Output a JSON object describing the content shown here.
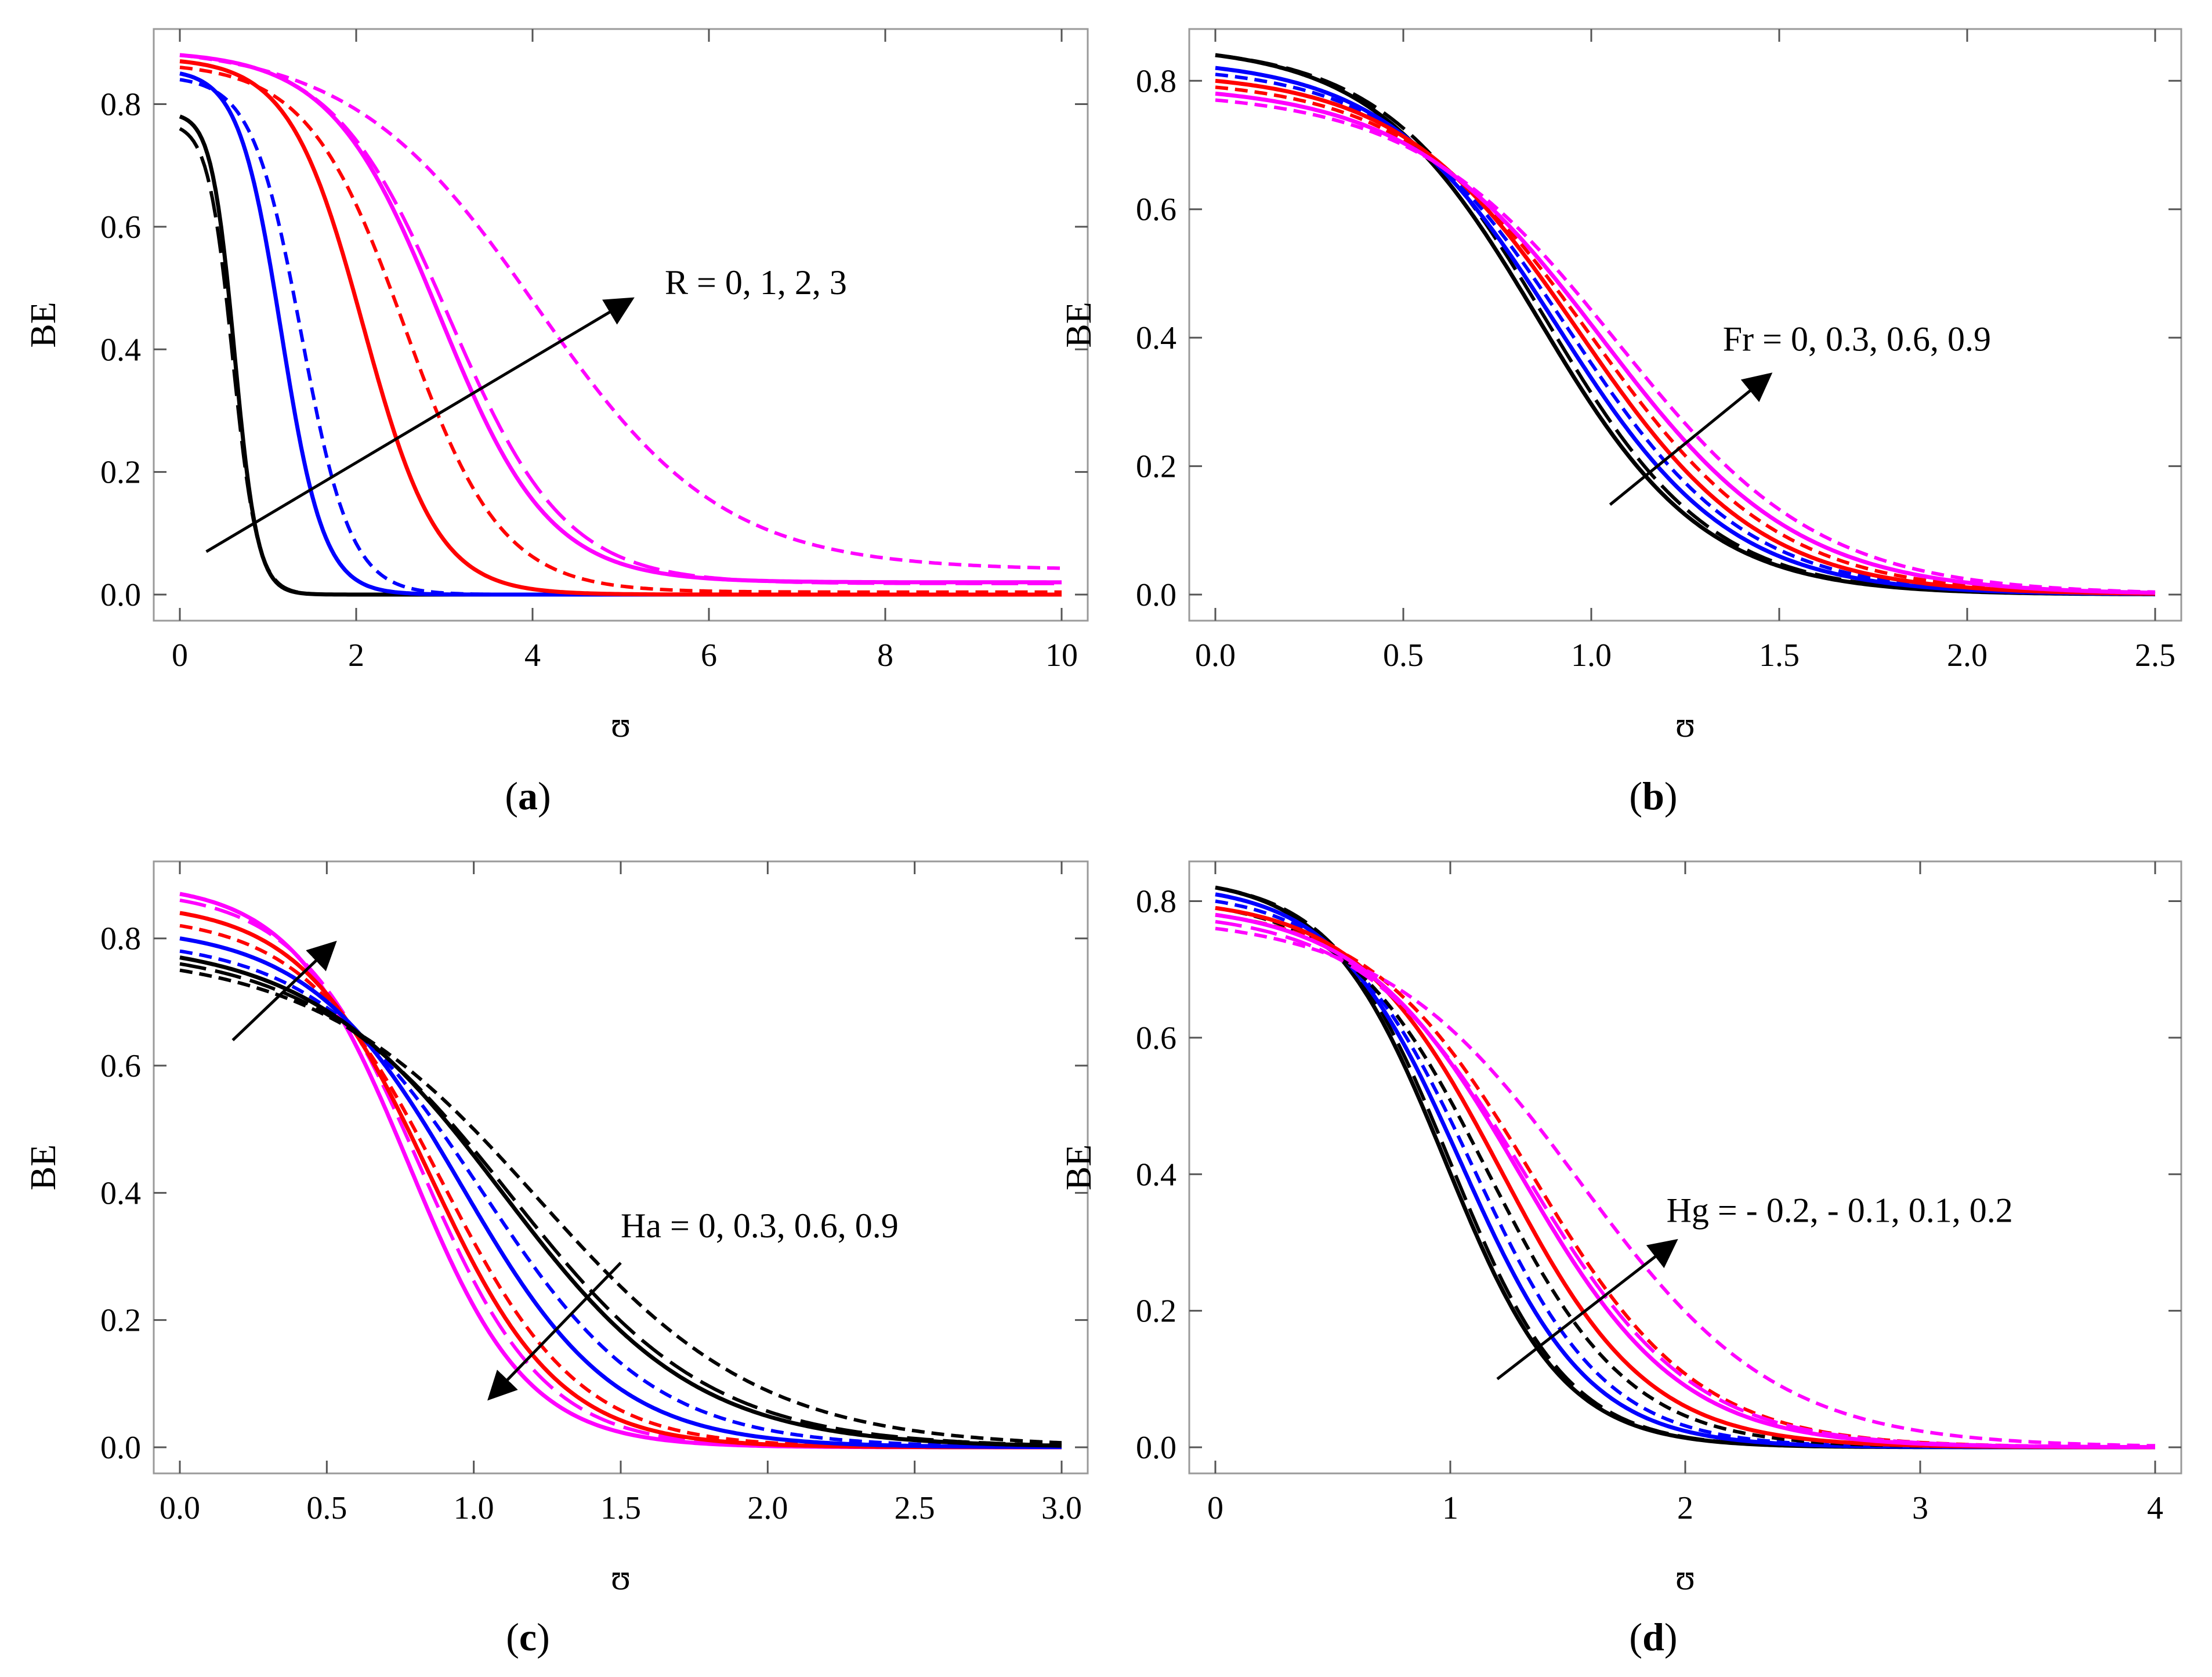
{
  "figure": {
    "panels": [
      "a",
      "b",
      "c",
      "d"
    ]
  },
  "colors": {
    "black": "#000000",
    "blue": "#0000ff",
    "red": "#ff0000",
    "magenta": "#ff00ff",
    "frame": "#9a9a9a"
  },
  "chart_data": [
    {
      "id": "a",
      "type": "line",
      "caption_letter": "a",
      "xlabel": "ʊ",
      "ylabel": "BE",
      "xlim": [
        0,
        10
      ],
      "ylim": [
        0,
        0.88
      ],
      "xticks": [
        0,
        2,
        4,
        6,
        8,
        10
      ],
      "xtick_labels": [
        "0",
        "2",
        "4",
        "6",
        "8",
        "10"
      ],
      "yticks": [
        0,
        0.2,
        0.4,
        0.6,
        0.8
      ],
      "ytick_labels": [
        "0.0",
        "0.2",
        "0.4",
        "0.6",
        "0.8"
      ],
      "annotation": "R = 0, 1, 2, 3",
      "arrows": [
        {
          "from": [
            0.3,
            0.07
          ],
          "to": [
            5.1,
            0.48
          ]
        }
      ],
      "annotation_pos": [
        5.5,
        0.49
      ],
      "series": [
        {
          "name": "R=0 solid",
          "color": "black",
          "dash": "solid",
          "params": [
            0.78,
            0.62,
            0.13,
            0.0
          ]
        },
        {
          "name": "R=0 dashed",
          "color": "black",
          "dash": "long",
          "params": [
            0.76,
            0.6,
            0.14,
            0.0
          ]
        },
        {
          "name": "R=1 solid",
          "color": "blue",
          "dash": "solid",
          "params": [
            0.85,
            1.15,
            0.24,
            0.0
          ]
        },
        {
          "name": "R=1 dashed",
          "color": "blue",
          "dash": "short",
          "params": [
            0.84,
            1.38,
            0.28,
            0.0
          ]
        },
        {
          "name": "R=2 solid",
          "color": "red",
          "dash": "solid",
          "params": [
            0.87,
            2.08,
            0.42,
            0.0
          ]
        },
        {
          "name": "R=2 dashed",
          "color": "red",
          "dash": "short",
          "params": [
            0.86,
            2.55,
            0.55,
            0.004
          ]
        },
        {
          "name": "R=3 solid",
          "color": "magenta",
          "dash": "solid",
          "params": [
            0.88,
            2.95,
            0.62,
            0.02
          ]
        },
        {
          "name": "R=3 dashed",
          "color": "magenta",
          "dash": "long",
          "params": [
            0.88,
            3.05,
            0.66,
            0.018
          ]
        },
        {
          "name": "R=3 short",
          "color": "magenta",
          "dash": "short",
          "params": [
            0.88,
            4.05,
            1.05,
            0.04
          ]
        }
      ]
    },
    {
      "id": "b",
      "type": "line",
      "caption_letter": "b",
      "xlabel": "ʊ",
      "ylabel": "BE",
      "xlim": [
        0,
        2.5
      ],
      "ylim": [
        0,
        0.84
      ],
      "xticks": [
        0,
        0.5,
        1.0,
        1.5,
        2.0,
        2.5
      ],
      "xtick_labels": [
        "0.0",
        "0.5",
        "1.0",
        "1.5",
        "2.0",
        "2.5"
      ],
      "yticks": [
        0,
        0.2,
        0.4,
        0.6,
        0.8
      ],
      "ytick_labels": [
        "0.0",
        "0.2",
        "0.4",
        "0.6",
        "0.8"
      ],
      "annotation": "Fr = 0, 0.3, 0.6, 0.9",
      "arrows": [
        {
          "from": [
            1.05,
            0.14
          ],
          "to": [
            1.47,
            0.34
          ]
        }
      ],
      "annotation_pos": [
        1.35,
        0.38
      ],
      "series": [
        {
          "name": "Fr=0 solid",
          "color": "black",
          "dash": "solid",
          "params": [
            0.84,
            0.86,
            0.22,
            0.0
          ]
        },
        {
          "name": "Fr=0 dashed",
          "color": "black",
          "dash": "long",
          "params": [
            0.84,
            0.88,
            0.22,
            0.0
          ]
        },
        {
          "name": "Fr=0.3 solid",
          "color": "blue",
          "dash": "solid",
          "params": [
            0.82,
            0.91,
            0.23,
            0.0
          ]
        },
        {
          "name": "Fr=0.3 dashed",
          "color": "blue",
          "dash": "short",
          "params": [
            0.81,
            0.94,
            0.235,
            0.0
          ]
        },
        {
          "name": "Fr=0.6 solid",
          "color": "red",
          "dash": "solid",
          "params": [
            0.8,
            0.97,
            0.24,
            0.0
          ]
        },
        {
          "name": "Fr=0.6 dashed",
          "color": "red",
          "dash": "short",
          "params": [
            0.79,
            1.0,
            0.25,
            0.0
          ]
        },
        {
          "name": "Fr=0.9 solid",
          "color": "magenta",
          "dash": "solid",
          "params": [
            0.78,
            1.03,
            0.26,
            0.0
          ]
        },
        {
          "name": "Fr=0.9 dashed",
          "color": "magenta",
          "dash": "short",
          "params": [
            0.77,
            1.07,
            0.27,
            0.0
          ]
        }
      ]
    },
    {
      "id": "c",
      "type": "line",
      "caption_letter": "c",
      "xlabel": "ʊ",
      "ylabel": "BE",
      "xlim": [
        0,
        3.0
      ],
      "ylim": [
        0,
        0.88
      ],
      "xticks": [
        0,
        0.5,
        1.0,
        1.5,
        2.0,
        2.5,
        3.0
      ],
      "xtick_labels": [
        "0.0",
        "0.5",
        "1.0",
        "1.5",
        "2.0",
        "2.5",
        "3.0"
      ],
      "yticks": [
        0,
        0.2,
        0.4,
        0.6,
        0.8
      ],
      "ytick_labels": [
        "0.0",
        "0.2",
        "0.4",
        "0.6",
        "0.8"
      ],
      "annotation": "Ha = 0, 0.3, 0.6, 0.9",
      "arrows": [
        {
          "from": [
            0.18,
            0.64
          ],
          "to": [
            0.52,
            0.79
          ]
        },
        {
          "from": [
            1.5,
            0.29
          ],
          "to": [
            1.06,
            0.08
          ]
        }
      ],
      "annotation_pos": [
        1.5,
        0.33
      ],
      "series": [
        {
          "name": "Ha=0.9 solid",
          "color": "magenta",
          "dash": "solid",
          "params": [
            0.87,
            0.78,
            0.2,
            0.0
          ]
        },
        {
          "name": "Ha=0.9 dashed",
          "color": "magenta",
          "dash": "long",
          "params": [
            0.86,
            0.82,
            0.21,
            0.0
          ]
        },
        {
          "name": "Ha=0.6 solid",
          "color": "red",
          "dash": "solid",
          "params": [
            0.84,
            0.85,
            0.22,
            0.0
          ]
        },
        {
          "name": "Ha=0.6 dashed",
          "color": "red",
          "dash": "short",
          "params": [
            0.82,
            0.89,
            0.235,
            0.0
          ]
        },
        {
          "name": "Ha=0.3 solid",
          "color": "blue",
          "dash": "solid",
          "params": [
            0.8,
            0.96,
            0.26,
            0.0
          ]
        },
        {
          "name": "Ha=0.3 dashed",
          "color": "blue",
          "dash": "short",
          "params": [
            0.78,
            1.03,
            0.29,
            0.0
          ]
        },
        {
          "name": "Ha=0 solid",
          "color": "black",
          "dash": "solid",
          "params": [
            0.77,
            1.1,
            0.33,
            0.0
          ]
        },
        {
          "name": "Ha=0 dashed",
          "color": "black",
          "dash": "long",
          "params": [
            0.76,
            1.13,
            0.34,
            0.0
          ]
        },
        {
          "name": "Ha=0 short",
          "color": "black",
          "dash": "short",
          "params": [
            0.75,
            1.22,
            0.38,
            0.0
          ]
        }
      ]
    },
    {
      "id": "d",
      "type": "line",
      "caption_letter": "d",
      "xlabel": "ʊ",
      "ylabel": "BE",
      "xlim": [
        0,
        4
      ],
      "ylim": [
        0,
        0.82
      ],
      "xticks": [
        0,
        1,
        2,
        3,
        4
      ],
      "xtick_labels": [
        "0",
        "1",
        "2",
        "3",
        "4"
      ],
      "yticks": [
        0,
        0.2,
        0.4,
        0.6,
        0.8
      ],
      "ytick_labels": [
        "0.0",
        "0.2",
        "0.4",
        "0.6",
        "0.8"
      ],
      "annotation": "Hg = - 0.2, - 0.1, 0.1, 0.2",
      "arrows": [
        {
          "from": [
            1.2,
            0.1
          ],
          "to": [
            1.95,
            0.3
          ]
        }
      ],
      "annotation_pos": [
        1.92,
        0.33
      ],
      "series": [
        {
          "name": "Hg=-0.2 solid",
          "color": "black",
          "dash": "solid",
          "params": [
            0.82,
            0.98,
            0.25,
            0.0
          ]
        },
        {
          "name": "Hg=-0.2 dashed",
          "color": "black",
          "dash": "long",
          "params": [
            0.82,
            1.0,
            0.25,
            0.0
          ]
        },
        {
          "name": "Hg=-0.1 solid",
          "color": "blue",
          "dash": "solid",
          "params": [
            0.81,
            1.05,
            0.27,
            0.0
          ]
        },
        {
          "name": "Hg=-0.1 dashed",
          "color": "blue",
          "dash": "short",
          "params": [
            0.8,
            1.1,
            0.28,
            0.0
          ]
        },
        {
          "name": "Hg=-0.2 short",
          "color": "black",
          "dash": "short",
          "params": [
            0.79,
            1.16,
            0.3,
            0.0
          ]
        },
        {
          "name": "Hg=0.1 solid",
          "color": "red",
          "dash": "solid",
          "params": [
            0.79,
            1.22,
            0.31,
            0.0
          ]
        },
        {
          "name": "Hg=0.1 dashed",
          "color": "red",
          "dash": "short",
          "params": [
            0.78,
            1.35,
            0.35,
            0.0
          ]
        },
        {
          "name": "Hg=0.2 solid",
          "color": "magenta",
          "dash": "solid",
          "params": [
            0.78,
            1.3,
            0.34,
            0.0
          ]
        },
        {
          "name": "Hg=0.2 dashed",
          "color": "magenta",
          "dash": "long",
          "params": [
            0.77,
            1.33,
            0.35,
            0.0
          ]
        },
        {
          "name": "Hg=0.2 short",
          "color": "magenta",
          "dash": "short",
          "params": [
            0.76,
            1.55,
            0.42,
            0.0
          ]
        }
      ]
    }
  ]
}
